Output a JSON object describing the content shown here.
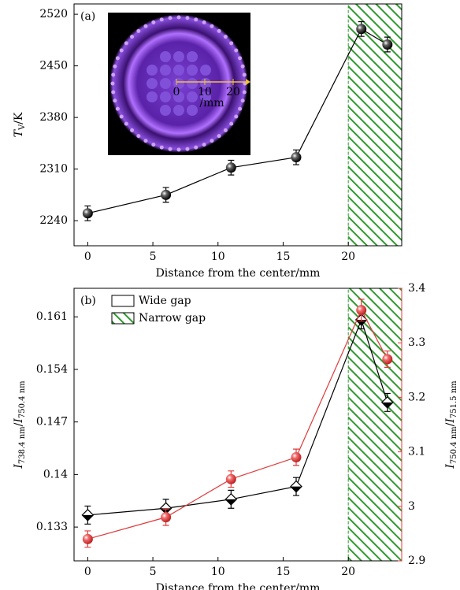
{
  "chart_data": [
    {
      "type": "line",
      "panel_label": "(a)",
      "xlabel": "Distance from the center/mm",
      "ylabel": [
        {
          "text": "T",
          "style": "italic"
        },
        {
          "text": "V",
          "style": "sub"
        },
        {
          "text": "/K",
          "style": "normal"
        }
      ],
      "x": [
        0,
        6,
        11,
        16,
        21,
        23
      ],
      "series": [
        {
          "color": "#000000",
          "values": [
            2250,
            2275,
            2312,
            2326,
            2500,
            2479
          ],
          "errors": [
            10,
            10,
            10,
            10,
            10,
            10
          ]
        }
      ],
      "xlim": [
        -1.05,
        24.1
      ],
      "xticks": [
        0,
        5,
        10,
        15,
        20
      ],
      "ylim": [
        2206,
        2534
      ],
      "yticks": [
        2240,
        2310,
        2380,
        2450,
        2520
      ],
      "shaded_region": [
        20,
        24.1
      ],
      "shade_color": "#2e9a2e",
      "inset": {
        "scale_labels": [
          "0",
          "10",
          "20"
        ],
        "unit": "/mm"
      }
    },
    {
      "type": "line",
      "panel_label": "(b)",
      "xlabel": "Distance from the center/mm",
      "ylabel": [
        {
          "text": "I",
          "style": "italic"
        },
        {
          "text": "738.4 nm",
          "style": "sub"
        },
        {
          "text": "/",
          "style": "normal"
        },
        {
          "text": "I",
          "style": "italic"
        },
        {
          "text": "750.4 nm",
          "style": "sub"
        }
      ],
      "y2label": [
        {
          "text": "I",
          "style": "italic"
        },
        {
          "text": "750.4 nm",
          "style": "sub"
        },
        {
          "text": "/",
          "style": "normal"
        },
        {
          "text": "I",
          "style": "italic"
        },
        {
          "text": "751.5 nm",
          "style": "sub"
        }
      ],
      "x": [
        0,
        6,
        11,
        16,
        21,
        23
      ],
      "series": [
        {
          "color": "#000000",
          "marker": "diamond",
          "values": [
            0.1346,
            0.1355,
            0.1367,
            0.1384,
            0.1606,
            0.1496
          ],
          "errors": [
            0.0012,
            0.0012,
            0.0012,
            0.0012,
            0.0012,
            0.0012
          ]
        },
        {
          "color": "#e03a3a",
          "marker": "circle",
          "axis": "y2",
          "values": [
            2.94,
            2.98,
            3.05,
            3.09,
            3.36,
            3.27
          ],
          "errors": [
            0.015,
            0.015,
            0.015,
            0.015,
            0.02,
            0.015
          ]
        }
      ],
      "legend": [
        "Wide gap",
        "Narrow gap"
      ],
      "xlim": [
        -1.05,
        24.1
      ],
      "xticks": [
        0,
        5,
        10,
        15,
        20
      ],
      "ylim": [
        0.1285,
        0.1648
      ],
      "yticks": [
        0.133,
        0.14,
        0.147,
        0.154,
        0.161
      ],
      "y2lim": [
        2.9,
        3.4
      ],
      "y2ticks": [
        2.9,
        3,
        3.1,
        3.2,
        3.3,
        3.4
      ],
      "shaded_region": [
        20,
        24.1
      ],
      "shade_color": "#2e9a2e"
    }
  ]
}
